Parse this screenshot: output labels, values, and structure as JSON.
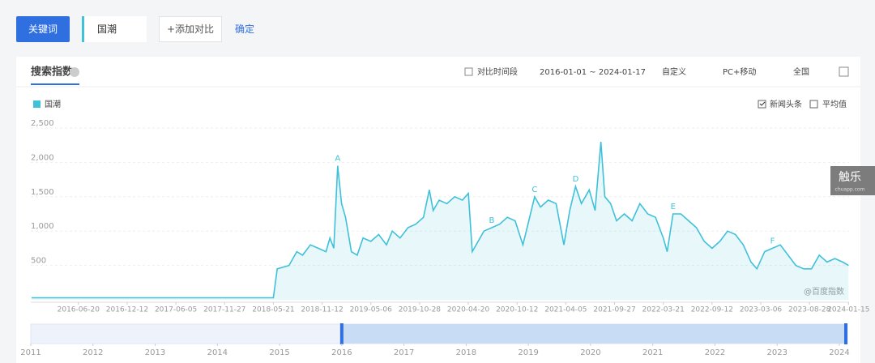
{
  "toolbar": {
    "tab": "关键词",
    "keyword": "国潮",
    "add": "+添加对比",
    "confirm": "确定"
  },
  "header": {
    "title": "搜索指数",
    "compare": "对比时间段",
    "range": "2016-01-01 ~ 2024-01-17",
    "custom": "自定义",
    "device": "PC+移动",
    "region": "全国",
    "news": "新闻头条",
    "average": "平均值"
  },
  "watermark": "@百度指数",
  "badge": {
    "name": "触乐",
    "site": "chuapp.com"
  },
  "navigator": {
    "years": [
      2011,
      2012,
      2013,
      2014,
      2015,
      2016,
      2017,
      2018,
      2019,
      2020,
      2021,
      2022,
      2023,
      2024
    ]
  },
  "chart_data": {
    "type": "line",
    "grid": true,
    "xlim": [
      "2016-01-01",
      "2024-01-17"
    ],
    "xticks": [
      "2016-06-20",
      "2016-12-12",
      "2017-06-05",
      "2017-11-27",
      "2018-05-21",
      "2018-11-12",
      "2019-05-06",
      "2019-10-28",
      "2020-04-20",
      "2020-10-12",
      "2021-04-05",
      "2021-09-27",
      "2022-03-21",
      "2022-09-12",
      "2023-03-06",
      "2023-08-28",
      "2024-01-15"
    ],
    "ylim": [
      0,
      2500
    ],
    "yticks": [
      500,
      {
        "value": 1000,
        "label": "1,000"
      },
      {
        "value": 1500,
        "label": "1,500"
      },
      {
        "value": 2000,
        "label": "2,000"
      },
      {
        "value": 2500,
        "label": "2,500"
      }
    ],
    "series": [
      {
        "name": "国潮",
        "color": "#3ec1d9",
        "x": [
          "2016-01-04",
          "2018-05-21",
          "2018-06-04",
          "2018-07-16",
          "2018-08-13",
          "2018-09-03",
          "2018-10-01",
          "2018-10-29",
          "2018-11-26",
          "2018-12-10",
          "2018-12-24",
          "2019-01-07",
          "2019-01-21",
          "2019-02-04",
          "2019-02-25",
          "2019-03-18",
          "2019-04-08",
          "2019-05-06",
          "2019-06-03",
          "2019-07-01",
          "2019-07-22",
          "2019-08-19",
          "2019-09-16",
          "2019-10-14",
          "2019-11-11",
          "2019-12-02",
          "2019-12-16",
          "2020-01-06",
          "2020-02-03",
          "2020-03-02",
          "2020-03-30",
          "2020-04-20",
          "2020-05-04",
          "2020-05-18",
          "2020-06-15",
          "2020-07-13",
          "2020-08-10",
          "2020-09-07",
          "2020-10-05",
          "2020-11-02",
          "2020-11-23",
          "2020-12-14",
          "2021-01-04",
          "2021-02-01",
          "2021-03-01",
          "2021-03-29",
          "2021-04-19",
          "2021-05-10",
          "2021-05-31",
          "2021-06-28",
          "2021-07-19",
          "2021-08-09",
          "2021-08-23",
          "2021-09-13",
          "2021-10-04",
          "2021-11-01",
          "2021-11-29",
          "2021-12-27",
          "2022-01-24",
          "2022-02-21",
          "2022-03-21",
          "2022-04-04",
          "2022-04-25",
          "2022-05-23",
          "2022-06-20",
          "2022-07-18",
          "2022-08-15",
          "2022-09-12",
          "2022-10-10",
          "2022-11-07",
          "2022-12-05",
          "2023-01-02",
          "2023-01-30",
          "2023-02-20",
          "2023-03-20",
          "2023-04-17",
          "2023-05-15",
          "2023-06-12",
          "2023-07-10",
          "2023-08-07",
          "2023-09-04",
          "2023-10-02",
          "2023-10-30",
          "2023-11-27",
          "2023-12-25",
          "2024-01-15"
        ],
        "values": [
          30,
          30,
          450,
          500,
          700,
          650,
          800,
          750,
          700,
          900,
          750,
          1950,
          1400,
          1200,
          700,
          650,
          900,
          850,
          950,
          800,
          1000,
          900,
          1050,
          1100,
          1200,
          1600,
          1300,
          1450,
          1400,
          1500,
          1450,
          1550,
          700,
          800,
          1000,
          1050,
          1100,
          1200,
          1150,
          800,
          1150,
          1500,
          1350,
          1450,
          1400,
          800,
          1300,
          1650,
          1400,
          1600,
          1300,
          2300,
          1500,
          1400,
          1150,
          1250,
          1150,
          1400,
          1250,
          1200,
          900,
          700,
          1250,
          1250,
          1150,
          1050,
          850,
          750,
          850,
          1000,
          950,
          800,
          550,
          450,
          700,
          750,
          800,
          650,
          500,
          450,
          450,
          650,
          550,
          600,
          550,
          500
        ]
      }
    ],
    "annotations": [
      {
        "text": "A",
        "x": "2019-01-07",
        "y": 1950
      },
      {
        "text": "B",
        "x": "2020-07-13",
        "y": 1050
      },
      {
        "text": "C",
        "x": "2020-12-14",
        "y": 1500
      },
      {
        "text": "D",
        "x": "2021-05-10",
        "y": 1650
      },
      {
        "text": "E",
        "x": "2022-04-25",
        "y": 1250
      },
      {
        "text": "F",
        "x": "2023-04-17",
        "y": 750
      }
    ]
  }
}
